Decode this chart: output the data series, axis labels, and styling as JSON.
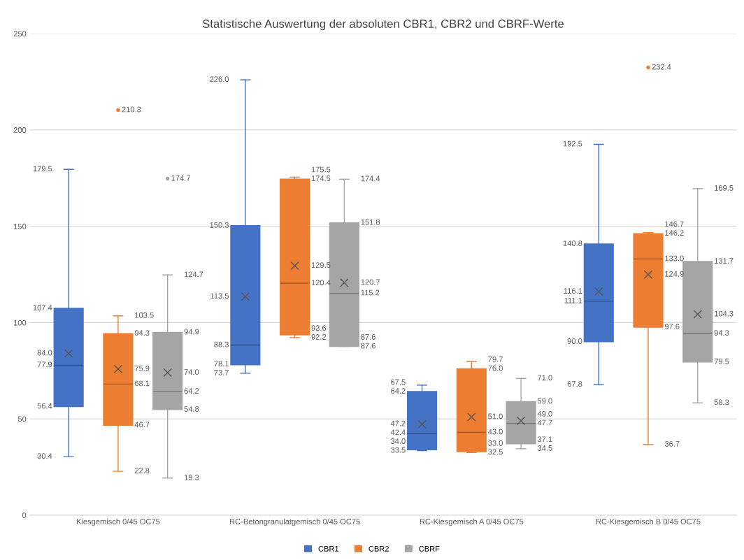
{
  "chart_data": {
    "type": "box",
    "title": "Statistische Auswertung der absoluten CBR1, CBR2 und CBRF-Werte",
    "categories": [
      "Kiesgemisch 0/45 OC75",
      "RC-Betongranulatgemisch 0/45 OC75",
      "RC-Kiesgemisch A 0/45 OC75",
      "RC-Kiesgemisch B 0/45 OC75"
    ],
    "ylim": [
      0,
      250
    ],
    "yticks": [
      0,
      50,
      100,
      150,
      200,
      250
    ],
    "grid": "y",
    "legend": "bottom",
    "series": [
      {
        "name": "CBR1",
        "color": "#4472c4",
        "boxes": [
          {
            "low": 30.4,
            "q1": 56.4,
            "median": 77.9,
            "q3": 107.4,
            "high": 179.5,
            "mean": 84.0
          },
          {
            "low": 73.7,
            "q1": 78.1,
            "median": 88.3,
            "q3": 150.3,
            "high": 226.0,
            "mean": 113.5
          },
          {
            "low": 33.5,
            "q1": 34.0,
            "median": 42.4,
            "q3": 64.2,
            "high": 67.5,
            "mean": 47.2
          },
          {
            "low": 67.8,
            "q1": 90.0,
            "median": 111.1,
            "q3": 140.8,
            "high": 192.5,
            "mean": 116.1
          }
        ]
      },
      {
        "name": "CBR2",
        "color": "#ed7d31",
        "boxes": [
          {
            "low": 22.8,
            "q1": 46.7,
            "median": 68.1,
            "q3": 94.3,
            "high": 103.5,
            "mean": 75.9,
            "outliers": [
              210.3
            ]
          },
          {
            "low": 92.2,
            "q1": 93.6,
            "median": 120.4,
            "q3": 174.5,
            "high": 175.5,
            "mean": 129.5
          },
          {
            "low": 32.5,
            "q1": 33.0,
            "median": 43.0,
            "q3": 76.0,
            "high": 79.7,
            "mean": 51.0
          },
          {
            "low": 36.7,
            "q1": 97.6,
            "median": 133.0,
            "q3": 146.2,
            "high": 146.7,
            "mean": 124.9,
            "outliers": [
              232.4
            ]
          }
        ]
      },
      {
        "name": "CBRF",
        "color": "#a5a5a5",
        "boxes": [
          {
            "low": 19.3,
            "q1": 54.8,
            "median": 64.2,
            "q3": 94.9,
            "high": 124.7,
            "mean": 74.0,
            "outliers": [
              174.7
            ]
          },
          {
            "low": 87.6,
            "q1": 87.6,
            "median": 115.2,
            "q3": 151.8,
            "high": 174.4,
            "mean": 120.7
          },
          {
            "low": 34.5,
            "q1": 37.1,
            "median": 47.7,
            "q3": 59.0,
            "high": 71.0,
            "mean": 49.0
          },
          {
            "low": 58.3,
            "q1": 79.5,
            "median": 94.3,
            "q3": 131.7,
            "high": 169.5,
            "mean": 104.3
          }
        ]
      }
    ],
    "annotations": [
      "30.4",
      "56.4",
      "77.9",
      "107.4",
      "179.5",
      "84.0",
      "73.7",
      "78.1",
      "88.3",
      "150.3",
      "226.0",
      "113.5",
      "33.5",
      "34.0",
      "42.4",
      "64.2",
      "67.5",
      "47.2",
      "67.8",
      "90.0",
      "111.1",
      "140.8",
      "192.5",
      "116.1",
      "22.8",
      "46.7",
      "68.1",
      "94.3",
      "103.5",
      "75.9",
      "210.3",
      "92.2",
      "93.6",
      "120.4",
      "174.5",
      "175.5",
      "129.5",
      "32.5",
      "33.0",
      "43.0",
      "76.0",
      "79.7",
      "51.0",
      "36.7",
      "97.6",
      "133.0",
      "146.2",
      "146.7",
      "124.9",
      "232.4",
      "19.3",
      "54.8",
      "64.2",
      "94.9",
      "124.7",
      "74.0",
      "174.7",
      "87.6",
      "87.6",
      "115.2",
      "151.8",
      "174.4",
      "120.7",
      "34.5",
      "37.1",
      "47.7",
      "59.0",
      "71.0",
      "49.0",
      "58.3",
      "79.5",
      "94.3",
      "131.7",
      "169.5",
      "104.3"
    ]
  }
}
